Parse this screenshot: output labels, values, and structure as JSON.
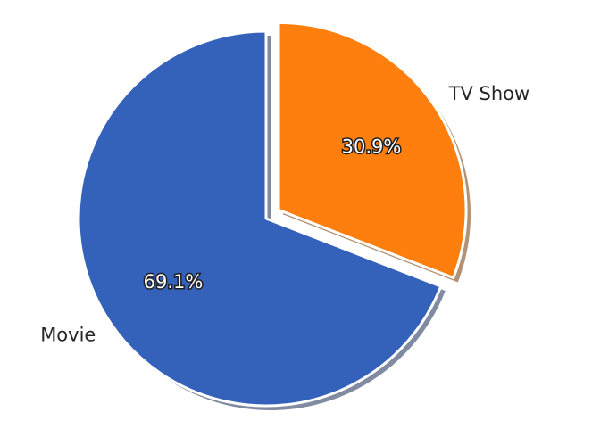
{
  "chart_data": {
    "type": "pie",
    "slices": [
      {
        "label": "Movie",
        "value": 69.1,
        "display": "69.1%",
        "color": "#3461BA",
        "exploded": false
      },
      {
        "label": "TV Show",
        "value": 30.9,
        "display": "30.9%",
        "color": "#FF7F0E",
        "exploded": true
      }
    ],
    "shadow": true,
    "start_angle": 90,
    "direction": "counterclockwise"
  }
}
